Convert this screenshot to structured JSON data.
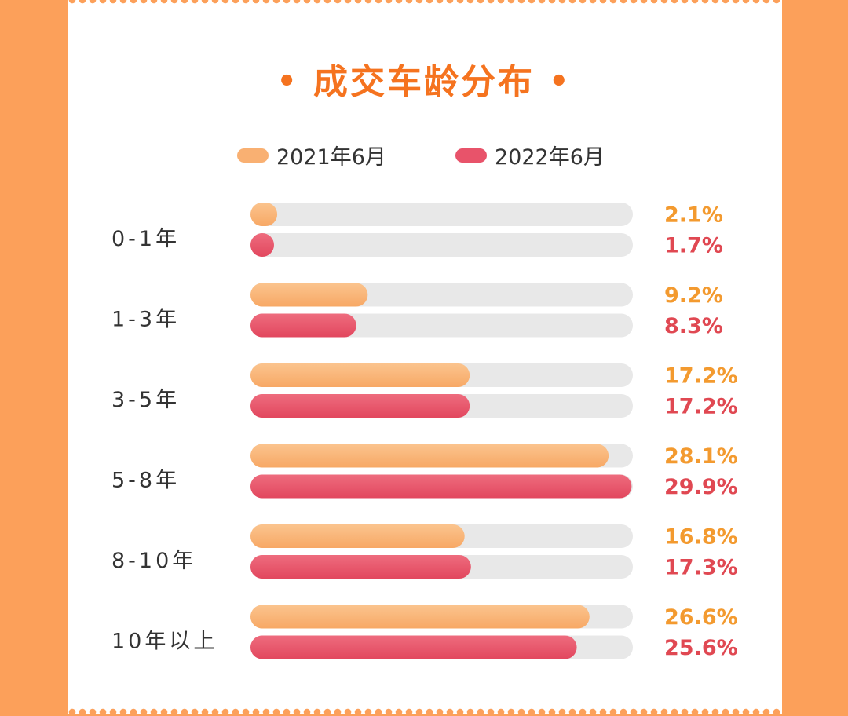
{
  "chart_data": {
    "type": "bar",
    "orientation": "horizontal",
    "title": "成交车龄分布",
    "title_decoration": "•",
    "categories": [
      "0-1年",
      "1-3年",
      "3-5年",
      "5-8年",
      "8-10年",
      "10年以上"
    ],
    "series": [
      {
        "name": "2021年6月",
        "color": "#f9b072",
        "label_color": "#f39a2f",
        "values": [
          2.1,
          9.2,
          17.2,
          28.1,
          16.8,
          26.6
        ],
        "labels": [
          "2.1%",
          "9.2%",
          "17.2%",
          "28.1%",
          "16.8%",
          "26.6%"
        ]
      },
      {
        "name": "2022年6月",
        "color": "#e8536a",
        "label_color": "#e04852",
        "values": [
          1.7,
          8.3,
          17.2,
          29.9,
          17.3,
          25.6
        ],
        "labels": [
          "1.7%",
          "8.3%",
          "17.2%",
          "29.9%",
          "17.3%",
          "25.6%"
        ]
      }
    ],
    "xlim": [
      0,
      30
    ],
    "track_color": "#e8e8e8",
    "legend": "top-center",
    "grid": false
  },
  "colors": {
    "background": "#fca05a",
    "card": "#ffffff",
    "title": "#f5731f",
    "text": "#333333"
  }
}
